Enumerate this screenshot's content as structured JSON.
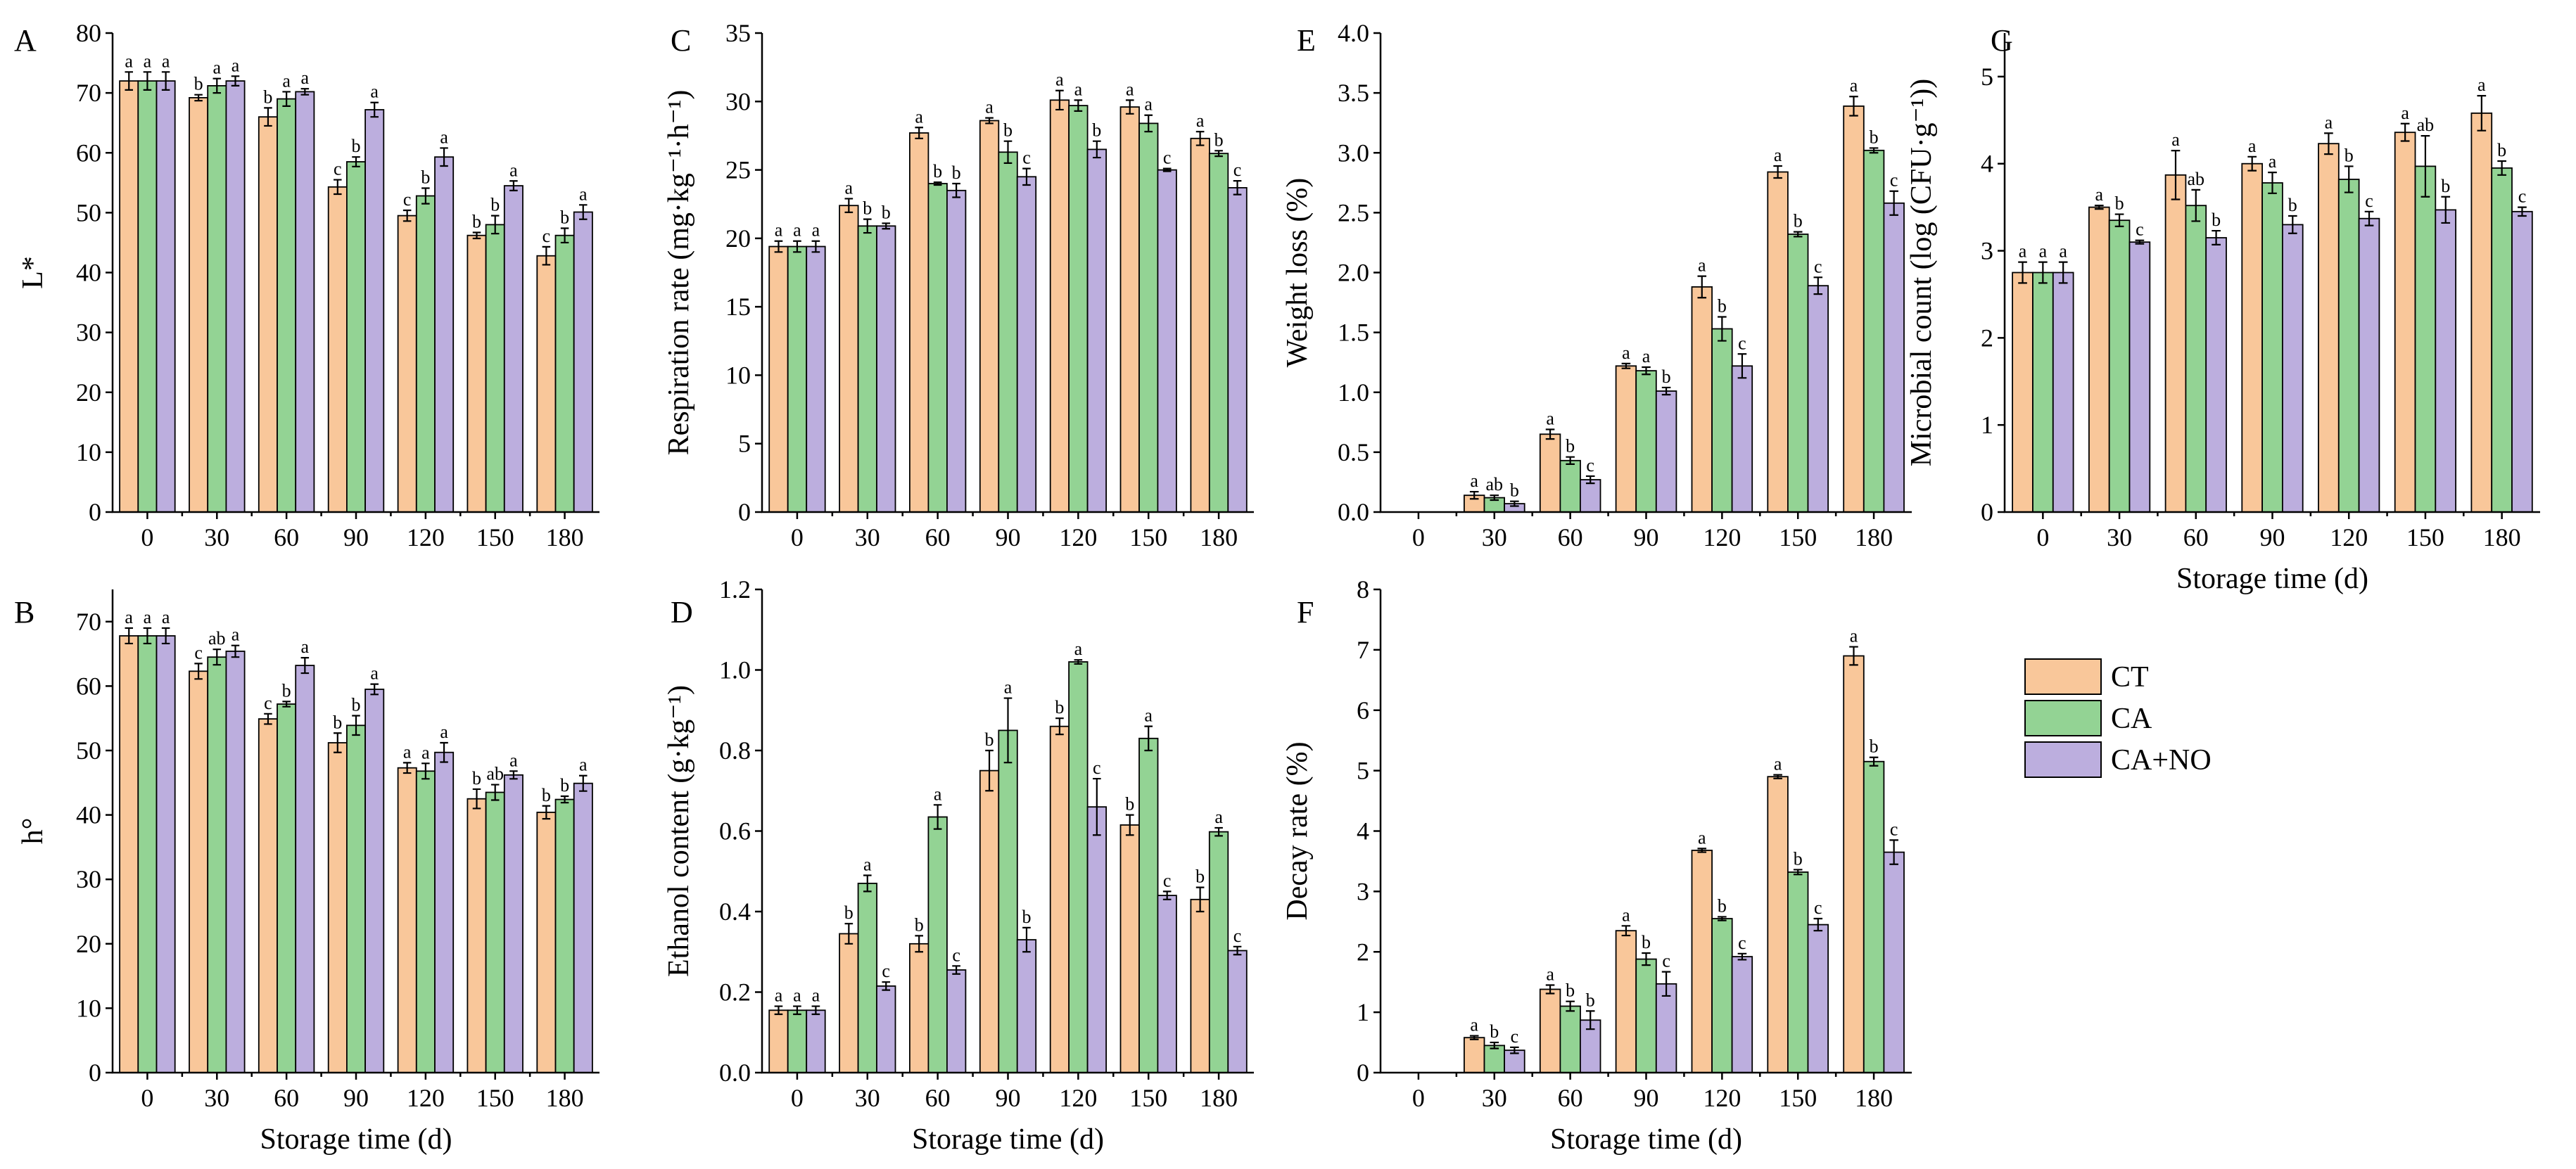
{
  "legend": {
    "items": [
      {
        "label": "CT",
        "color": "#f9c79a"
      },
      {
        "label": "CA",
        "color": "#93d394"
      },
      {
        "label": "CA+NO",
        "color": "#bcaede"
      }
    ]
  },
  "chart_data": [
    {
      "id": "A",
      "type": "bar",
      "panel_label": "A",
      "ylabel": "L*",
      "xlabel": "",
      "categories": [
        "0",
        "30",
        "60",
        "90",
        "120",
        "150",
        "180"
      ],
      "ylim": [
        0,
        80
      ],
      "yticks": [
        0,
        10,
        20,
        30,
        40,
        50,
        60,
        70,
        80
      ],
      "series": [
        {
          "name": "CT",
          "values": [
            72,
            69.2,
            66,
            54.3,
            49.5,
            46.2,
            42.8
          ],
          "errors": [
            1.5,
            0.5,
            1.5,
            1.2,
            0.9,
            0.5,
            1.5
          ],
          "letters": [
            "a",
            "b",
            "b",
            "c",
            "c",
            "b",
            "c"
          ]
        },
        {
          "name": "CA",
          "values": [
            72,
            71.2,
            69,
            58.5,
            52.8,
            48,
            46.2
          ],
          "errors": [
            1.5,
            1.2,
            1.2,
            0.8,
            1.3,
            1.5,
            1.2
          ],
          "letters": [
            "a",
            "a",
            "a",
            "b",
            "b",
            "b",
            "b"
          ]
        },
        {
          "name": "CA+NO",
          "values": [
            72,
            72,
            70.2,
            67.2,
            59.3,
            54.5,
            50.1
          ],
          "errors": [
            1.5,
            0.8,
            0.5,
            1.2,
            1.5,
            0.8,
            1.2
          ],
          "letters": [
            "a",
            "a",
            "a",
            "a",
            "a",
            "a",
            "a"
          ]
        }
      ]
    },
    {
      "id": "B",
      "type": "bar",
      "panel_label": "B",
      "ylabel": "h°",
      "xlabel": "Storage time (d)",
      "categories": [
        "0",
        "30",
        "60",
        "90",
        "120",
        "150",
        "180"
      ],
      "ylim": [
        0,
        75
      ],
      "yticks": [
        0,
        10,
        20,
        30,
        40,
        50,
        60,
        70
      ],
      "series": [
        {
          "name": "CT",
          "values": [
            67.8,
            62.3,
            54.9,
            51.2,
            47.3,
            42.5,
            40.4
          ],
          "errors": [
            1.2,
            1.2,
            0.8,
            1.5,
            0.8,
            1.5,
            1.0
          ],
          "letters": [
            "a",
            "c",
            "c",
            "b",
            "a",
            "b",
            "b"
          ]
        },
        {
          "name": "CA",
          "values": [
            67.8,
            64.5,
            57.2,
            53.9,
            46.8,
            43.5,
            42.4
          ],
          "errors": [
            1.2,
            1.2,
            0.4,
            1.5,
            1.2,
            1.2,
            0.5
          ],
          "letters": [
            "a",
            "ab",
            "b",
            "b",
            "a",
            "ab",
            "b"
          ]
        },
        {
          "name": "CA+NO",
          "values": [
            67.8,
            65.4,
            63.2,
            59.5,
            49.7,
            46.2,
            44.9
          ],
          "errors": [
            1.2,
            0.9,
            1.2,
            0.8,
            1.5,
            0.6,
            1.2
          ],
          "letters": [
            "a",
            "a",
            "a",
            "a",
            "a",
            "a",
            "a"
          ]
        }
      ]
    },
    {
      "id": "C",
      "type": "bar",
      "panel_label": "C",
      "ylabel": "Respiration rate (mg·kg⁻¹·h⁻¹)",
      "xlabel": "",
      "categories": [
        "0",
        "30",
        "60",
        "90",
        "120",
        "150",
        "180"
      ],
      "ylim": [
        0,
        35
      ],
      "yticks": [
        0,
        5,
        10,
        15,
        20,
        25,
        30,
        35
      ],
      "series": [
        {
          "name": "CT",
          "values": [
            19.4,
            22.4,
            27.7,
            28.6,
            30.1,
            29.6,
            27.3
          ],
          "errors": [
            0.4,
            0.5,
            0.4,
            0.2,
            0.7,
            0.5,
            0.5
          ],
          "letters": [
            "a",
            "a",
            "a",
            "a",
            "a",
            "a",
            "a"
          ]
        },
        {
          "name": "CA",
          "values": [
            19.4,
            20.9,
            24.0,
            26.3,
            29.7,
            28.4,
            26.2
          ],
          "errors": [
            0.4,
            0.5,
            0.1,
            0.8,
            0.4,
            0.6,
            0.2
          ],
          "letters": [
            "a",
            "b",
            "b",
            "b",
            "a",
            "a",
            "b"
          ]
        },
        {
          "name": "CA+NO",
          "values": [
            19.4,
            20.9,
            23.5,
            24.5,
            26.5,
            25.0,
            23.7
          ],
          "errors": [
            0.4,
            0.2,
            0.5,
            0.6,
            0.6,
            0.1,
            0.5
          ],
          "letters": [
            "a",
            "b",
            "b",
            "c",
            "b",
            "c",
            "c"
          ]
        }
      ]
    },
    {
      "id": "D",
      "type": "bar",
      "panel_label": "D",
      "ylabel": "Ethanol content (g·kg⁻¹)",
      "xlabel": "Storage time (d)",
      "categories": [
        "0",
        "30",
        "60",
        "90",
        "120",
        "150",
        "180"
      ],
      "ylim": [
        0,
        1.2
      ],
      "yticks": [
        0,
        0.2,
        0.4,
        0.6,
        0.8,
        1.0,
        1.2
      ],
      "series": [
        {
          "name": "CT",
          "values": [
            0.155,
            0.345,
            0.32,
            0.75,
            0.86,
            0.615,
            0.43
          ],
          "errors": [
            0.01,
            0.025,
            0.02,
            0.05,
            0.02,
            0.025,
            0.03
          ],
          "letters": [
            "a",
            "b",
            "b",
            "b",
            "b",
            "b",
            "b"
          ]
        },
        {
          "name": "CA",
          "values": [
            0.155,
            0.47,
            0.635,
            0.85,
            1.02,
            0.83,
            0.598
          ],
          "errors": [
            0.01,
            0.02,
            0.03,
            0.08,
            0.005,
            0.03,
            0.01
          ],
          "letters": [
            "a",
            "a",
            "a",
            "a",
            "a",
            "a",
            "a"
          ]
        },
        {
          "name": "CA+NO",
          "values": [
            0.155,
            0.215,
            0.255,
            0.33,
            0.66,
            0.44,
            0.303
          ],
          "errors": [
            0.01,
            0.01,
            0.01,
            0.03,
            0.07,
            0.01,
            0.01
          ],
          "letters": [
            "a",
            "c",
            "c",
            "b",
            "c",
            "c",
            "c"
          ]
        }
      ]
    },
    {
      "id": "E",
      "type": "bar",
      "panel_label": "E",
      "ylabel": "Weight loss (%)",
      "xlabel": "",
      "categories": [
        "0",
        "30",
        "60",
        "90",
        "120",
        "150",
        "180"
      ],
      "ylim": [
        0,
        4.0
      ],
      "yticks": [
        0.0,
        0.5,
        1.0,
        1.5,
        2.0,
        2.5,
        3.0,
        3.5,
        4.0
      ],
      "series": [
        {
          "name": "CT",
          "values": [
            0,
            0.14,
            0.65,
            1.22,
            1.88,
            2.84,
            3.39
          ],
          "errors": [
            0,
            0.03,
            0.04,
            0.02,
            0.09,
            0.05,
            0.08
          ],
          "letters": [
            "",
            "a",
            "a",
            "a",
            "a",
            "a",
            "a"
          ]
        },
        {
          "name": "CA",
          "values": [
            0,
            0.12,
            0.43,
            1.18,
            1.53,
            2.32,
            3.02
          ],
          "errors": [
            0,
            0.02,
            0.03,
            0.03,
            0.1,
            0.02,
            0.02
          ],
          "letters": [
            "",
            "ab",
            "b",
            "a",
            "b",
            "b",
            "b"
          ]
        },
        {
          "name": "CA+NO",
          "values": [
            0,
            0.07,
            0.27,
            1.01,
            1.22,
            1.89,
            2.58
          ],
          "errors": [
            0,
            0.02,
            0.03,
            0.03,
            0.1,
            0.07,
            0.1
          ],
          "letters": [
            "",
            "b",
            "c",
            "b",
            "c",
            "c",
            "c"
          ]
        }
      ]
    },
    {
      "id": "F",
      "type": "bar",
      "panel_label": "F",
      "ylabel": "Decay rate (%)",
      "xlabel": "Storage time (d)",
      "categories": [
        "0",
        "30",
        "60",
        "90",
        "120",
        "150",
        "180"
      ],
      "ylim": [
        0,
        8
      ],
      "yticks": [
        0,
        1,
        2,
        3,
        4,
        5,
        6,
        7,
        8
      ],
      "series": [
        {
          "name": "CT",
          "values": [
            0,
            0.58,
            1.38,
            2.35,
            3.68,
            4.9,
            6.9
          ],
          "errors": [
            0,
            0.03,
            0.07,
            0.08,
            0.03,
            0.03,
            0.15
          ],
          "letters": [
            "",
            "a",
            "a",
            "a",
            "a",
            "a",
            "a"
          ]
        },
        {
          "name": "CA",
          "values": [
            0,
            0.45,
            1.1,
            1.88,
            2.55,
            3.32,
            5.15
          ],
          "errors": [
            0,
            0.05,
            0.08,
            0.1,
            0.03,
            0.04,
            0.07
          ],
          "letters": [
            "",
            "b",
            "b",
            "b",
            "b",
            "b",
            "b"
          ]
        },
        {
          "name": "CA+NO",
          "values": [
            0,
            0.37,
            0.87,
            1.47,
            1.92,
            2.45,
            3.65
          ],
          "errors": [
            0,
            0.05,
            0.15,
            0.2,
            0.05,
            0.1,
            0.2
          ],
          "letters": [
            "",
            "c",
            "b",
            "c",
            "c",
            "c",
            "c"
          ]
        }
      ]
    },
    {
      "id": "G",
      "type": "bar",
      "panel_label": "G",
      "ylabel": "Microbial count (log (CFU·g⁻¹))",
      "xlabel": "Storage time (d)",
      "categories": [
        "0",
        "30",
        "60",
        "90",
        "120",
        "150",
        "180"
      ],
      "ylim": [
        0,
        5.5
      ],
      "yticks": [
        0,
        1,
        2,
        3,
        4,
        5
      ],
      "series": [
        {
          "name": "CT",
          "values": [
            2.75,
            3.5,
            3.87,
            4.0,
            4.23,
            4.36,
            4.58
          ],
          "errors": [
            0.12,
            0.02,
            0.28,
            0.08,
            0.12,
            0.1,
            0.2
          ],
          "letters": [
            "a",
            "a",
            "a",
            "a",
            "a",
            "a",
            "a"
          ]
        },
        {
          "name": "CA",
          "values": [
            2.75,
            3.35,
            3.52,
            3.78,
            3.82,
            3.97,
            3.95
          ],
          "errors": [
            0.12,
            0.07,
            0.18,
            0.12,
            0.15,
            0.35,
            0.08
          ],
          "letters": [
            "a",
            "b",
            "ab",
            "a",
            "b",
            "ab",
            "b"
          ]
        },
        {
          "name": "CA+NO",
          "values": [
            2.75,
            3.1,
            3.15,
            3.3,
            3.37,
            3.47,
            3.45
          ],
          "errors": [
            0.12,
            0.02,
            0.08,
            0.1,
            0.08,
            0.15,
            0.05
          ],
          "letters": [
            "a",
            "c",
            "b",
            "b",
            "c",
            "b",
            "c"
          ]
        }
      ]
    }
  ]
}
